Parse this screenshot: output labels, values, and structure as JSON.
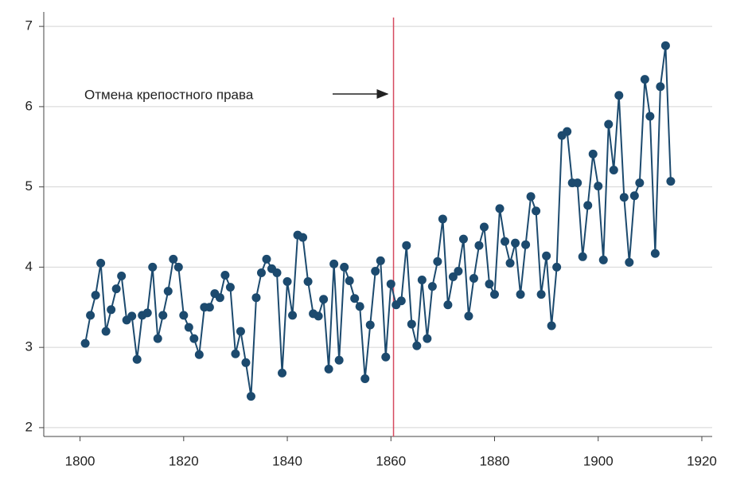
{
  "chart_data": {
    "type": "line",
    "annotation": "Отмена крепостного права",
    "vline": 1860.5,
    "x": [
      1801,
      1802,
      1803,
      1804,
      1805,
      1806,
      1807,
      1808,
      1809,
      1810,
      1811,
      1812,
      1813,
      1814,
      1815,
      1816,
      1817,
      1818,
      1819,
      1820,
      1821,
      1822,
      1823,
      1824,
      1825,
      1826,
      1827,
      1828,
      1829,
      1830,
      1831,
      1832,
      1833,
      1834,
      1835,
      1836,
      1837,
      1838,
      1839,
      1840,
      1841,
      1842,
      1843,
      1844,
      1845,
      1846,
      1847,
      1848,
      1849,
      1850,
      1851,
      1852,
      1853,
      1854,
      1855,
      1856,
      1857,
      1858,
      1859,
      1860,
      1861,
      1862,
      1863,
      1864,
      1865,
      1866,
      1867,
      1868,
      1869,
      1870,
      1871,
      1872,
      1873,
      1874,
      1875,
      1876,
      1877,
      1878,
      1879,
      1880,
      1881,
      1882,
      1883,
      1884,
      1885,
      1886,
      1887,
      1888,
      1889,
      1890,
      1891,
      1892,
      1893,
      1894,
      1895,
      1896,
      1897,
      1898,
      1899,
      1900,
      1901,
      1902,
      1903,
      1904,
      1905,
      1906,
      1907,
      1908,
      1909,
      1910,
      1911,
      1912,
      1913,
      1914
    ],
    "series": [
      {
        "color": "#1c4a6e",
        "values": [
          3.05,
          3.4,
          3.65,
          4.05,
          3.2,
          3.47,
          3.73,
          3.89,
          3.34,
          3.39,
          2.85,
          3.4,
          3.43,
          4.0,
          3.11,
          3.4,
          3.7,
          4.1,
          4.0,
          3.4,
          3.25,
          3.11,
          2.91,
          3.5,
          3.5,
          3.67,
          3.62,
          3.9,
          3.75,
          2.92,
          3.2,
          2.81,
          2.39,
          3.62,
          3.93,
          4.1,
          3.98,
          3.93,
          2.68,
          3.82,
          3.4,
          4.4,
          4.37,
          3.82,
          3.42,
          3.39,
          3.6,
          2.73,
          4.04,
          2.84,
          4.0,
          3.83,
          3.61,
          3.51,
          2.61,
          3.28,
          3.95,
          4.08,
          2.88,
          3.79,
          3.53,
          3.58,
          4.27,
          3.29,
          3.02,
          3.84,
          3.11,
          3.76,
          4.07,
          4.6,
          3.53,
          3.88,
          3.95,
          4.35,
          3.39,
          3.86,
          4.27,
          4.5,
          3.79,
          3.66,
          4.73,
          4.32,
          4.05,
          4.3,
          3.66,
          4.28,
          4.88,
          4.7,
          3.66,
          4.14,
          3.27,
          4.0,
          5.64,
          5.69,
          5.05,
          5.05,
          4.13,
          4.77,
          5.41,
          5.01,
          4.09,
          5.78,
          5.21,
          6.14,
          4.87,
          4.06,
          4.89,
          5.05,
          6.34,
          5.88,
          4.17,
          6.25,
          6.76,
          5.07
        ]
      }
    ],
    "xlim": [
      1793,
      1922
    ],
    "xticks": [
      1800,
      1820,
      1840,
      1860,
      1880,
      1900,
      1920
    ],
    "ylim": [
      1.89,
      7.18
    ],
    "yticks": [
      2,
      3,
      4,
      5,
      6,
      7
    ],
    "grid": true
  }
}
